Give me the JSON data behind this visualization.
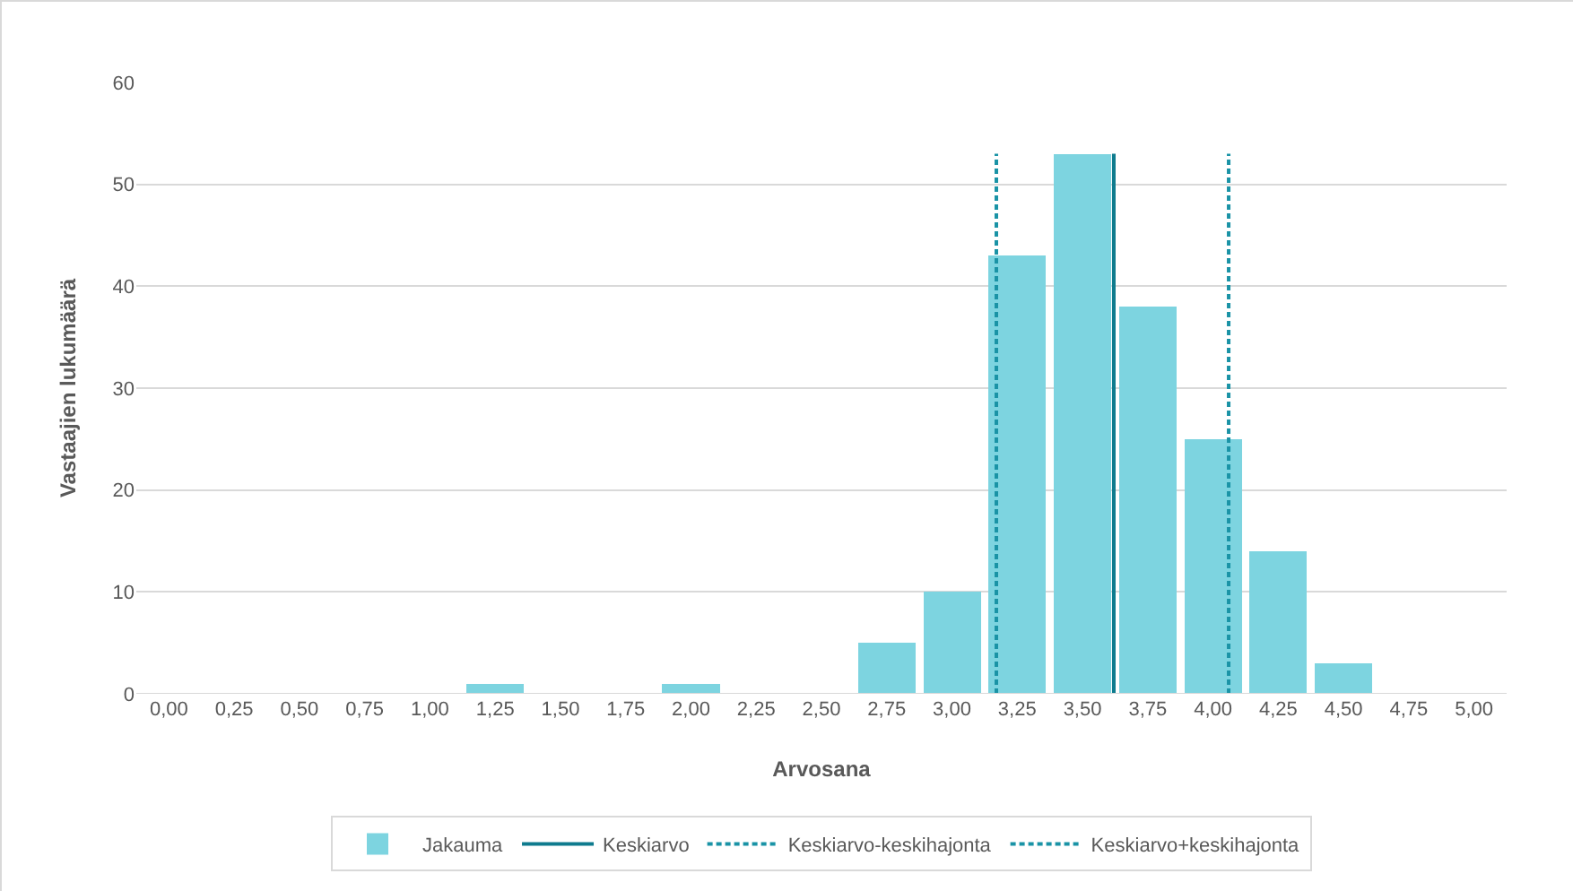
{
  "chart_data": {
    "type": "bar",
    "xlabel": "Arvosana",
    "ylabel": "Vastaajien lukumäärä",
    "x": [
      0,
      0.25,
      0.5,
      0.75,
      1,
      1.25,
      1.5,
      1.75,
      2,
      2.25,
      2.5,
      2.75,
      3,
      3.25,
      3.5,
      3.75,
      4,
      4.25,
      4.5,
      4.75,
      5
    ],
    "xlim": [
      -0.125,
      5.125
    ],
    "xticks": [
      {
        "value": 0,
        "label": "0,00"
      },
      {
        "value": 0.25,
        "label": "0,25"
      },
      {
        "value": 0.5,
        "label": "0,50"
      },
      {
        "value": 0.75,
        "label": "0,75"
      },
      {
        "value": 1,
        "label": "1,00"
      },
      {
        "value": 1.25,
        "label": "1,25"
      },
      {
        "value": 1.5,
        "label": "1,50"
      },
      {
        "value": 1.75,
        "label": "1,75"
      },
      {
        "value": 2,
        "label": "2,00"
      },
      {
        "value": 2.25,
        "label": "2,25"
      },
      {
        "value": 2.5,
        "label": "2,50"
      },
      {
        "value": 2.75,
        "label": "2,75"
      },
      {
        "value": 3,
        "label": "3,00"
      },
      {
        "value": 3.25,
        "label": "3,25"
      },
      {
        "value": 3.5,
        "label": "3,50"
      },
      {
        "value": 3.75,
        "label": "3,75"
      },
      {
        "value": 4,
        "label": "4,00"
      },
      {
        "value": 4.25,
        "label": "4,25"
      },
      {
        "value": 4.5,
        "label": "4,50"
      },
      {
        "value": 4.75,
        "label": "4,75"
      },
      {
        "value": 5,
        "label": "5,00"
      }
    ],
    "ylim": [
      0,
      60
    ],
    "yticks": [
      0,
      10,
      20,
      30,
      40,
      50,
      60
    ],
    "grid": "y",
    "legend": "bottom",
    "series": [
      {
        "name": "Jakauma",
        "color": "#7dd4e0",
        "values": [
          0,
          0,
          0,
          0,
          0,
          1,
          0,
          0,
          1,
          0,
          0,
          5,
          10,
          43,
          53,
          38,
          25,
          14,
          3,
          0,
          0
        ]
      },
      {
        "name": "Keskiarvo",
        "type": "line",
        "color": "#0e7b8e",
        "line_style": "solid",
        "x": [
          3.62,
          3.62
        ],
        "values": [
          0,
          53
        ]
      },
      {
        "name": "Keskiarvo-keskihajonta",
        "type": "line",
        "color": "#1a93a6",
        "line_style": "dashed",
        "x": [
          3.17,
          3.17
        ],
        "values": [
          0,
          53
        ]
      },
      {
        "name": "Keskiarvo+keskihajonta",
        "type": "line",
        "color": "#1a93a6",
        "line_style": "dashed",
        "x": [
          4.06,
          4.06
        ],
        "values": [
          0,
          53
        ]
      }
    ]
  }
}
